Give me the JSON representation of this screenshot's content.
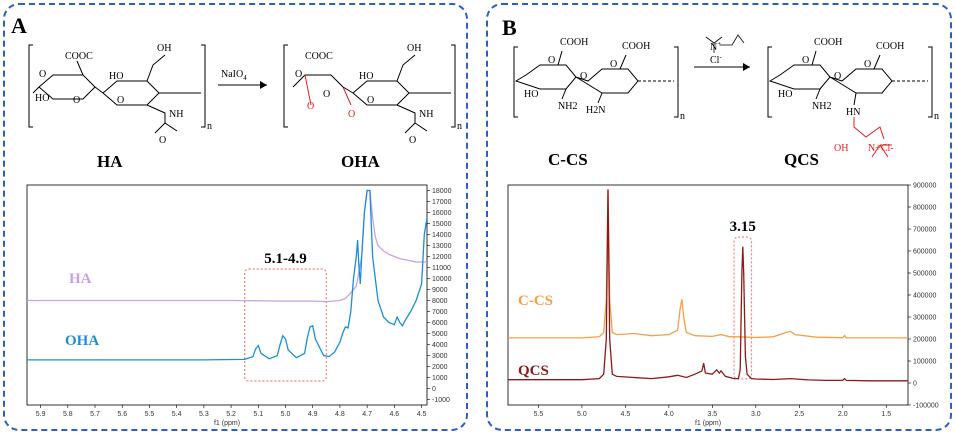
{
  "panelA": {
    "label": "A",
    "reagent": "NaIO",
    "reagent_sub": "4",
    "mol1": {
      "name": "HA",
      "groups": [
        "HO",
        "COOC",
        "OH",
        "O",
        "HO",
        "O",
        "O",
        "NH",
        "O",
        "n"
      ]
    },
    "mol2": {
      "name": "OHA",
      "groups": [
        "O",
        "COOC",
        "O",
        "O",
        "OH",
        "HO",
        "O",
        "O",
        "NH",
        "O",
        "n"
      ]
    }
  },
  "panelB": {
    "label": "B",
    "reagent": "N",
    "reagent_charge": "+",
    "reagent_counterion": "Cl",
    "reagent_counter_charge": "-",
    "mol1": {
      "name": "C-CS",
      "groups": [
        "COOH",
        "O",
        "COOH",
        "O",
        "O",
        "HO",
        "NH2",
        "H2N",
        "n"
      ]
    },
    "mol2": {
      "name": "QCS",
      "groups": [
        "COOH",
        "O",
        "COOH",
        "O",
        "O",
        "HO",
        "NH2",
        "HN",
        "OH",
        "N+Cl-",
        "n"
      ]
    }
  },
  "colors": {
    "border": "#2b5fc4",
    "ha": "#c9a0e6",
    "oha": "#1a8fd9",
    "ccs": "#f4a044",
    "qcs": "#8b1a1a",
    "highlight": "#f08080",
    "red_atoms": "#e02020"
  },
  "chart_data": [
    {
      "type": "line",
      "id": "nmr-A",
      "xlabel": "f1 (ppm)",
      "xlim": [
        5.95,
        4.48
      ],
      "ylim": [
        -1500,
        18500
      ],
      "x_ticks": [
        "5.9",
        "5.8",
        "5.7",
        "5.6",
        "5.5",
        "5.4",
        "5.3",
        "5.2",
        "5.1",
        "5.0",
        "4.9",
        "4.8",
        "4.7",
        "4.6",
        "4.5"
      ],
      "y_ticks": [
        "-1000",
        "0",
        "1000",
        "2000",
        "3000",
        "4000",
        "5000",
        "6000",
        "7000",
        "8000",
        "9000",
        "10000",
        "11000",
        "12000",
        "13000",
        "14000",
        "15000",
        "16000",
        "17000",
        "18000"
      ],
      "highlight": {
        "label": "5.1-4.9",
        "x_range": [
          5.15,
          4.85
        ]
      },
      "series": [
        {
          "name": "HA",
          "x": [
            5.95,
            5.2,
            5.0,
            4.9,
            4.85,
            4.8,
            4.78,
            4.76,
            4.74,
            4.72,
            4.71,
            4.7,
            4.69,
            4.68,
            4.67,
            4.66,
            4.64,
            4.62,
            4.6,
            4.58,
            4.56,
            4.54,
            4.52,
            4.5,
            4.48
          ],
          "y": [
            8000,
            8000,
            7950,
            7950,
            7900,
            8000,
            8200,
            8700,
            9300,
            12000,
            16000,
            18000,
            18000,
            15500,
            13800,
            13000,
            12500,
            12200,
            12000,
            11800,
            11700,
            11600,
            11500,
            11500,
            11500
          ]
        },
        {
          "name": "OHA",
          "x": [
            5.95,
            5.3,
            5.15,
            5.12,
            5.11,
            5.1,
            5.09,
            5.06,
            5.03,
            5.02,
            5.01,
            5.0,
            4.99,
            4.96,
            4.93,
            4.92,
            4.91,
            4.9,
            4.89,
            4.86,
            4.84,
            4.82,
            4.8,
            4.79,
            4.78,
            4.77,
            4.76,
            4.75,
            4.74,
            4.735,
            4.73,
            4.725,
            4.72,
            4.71,
            4.7,
            4.69,
            4.68,
            4.66,
            4.64,
            4.62,
            4.6,
            4.59,
            4.58,
            4.57,
            4.56,
            4.54,
            4.52,
            4.5,
            4.49,
            4.48
          ],
          "y": [
            2600,
            2600,
            2650,
            2900,
            3600,
            3900,
            3200,
            2700,
            3000,
            4000,
            4800,
            4500,
            3500,
            2800,
            3200,
            4600,
            5600,
            5700,
            4500,
            3000,
            2900,
            3300,
            4200,
            5000,
            5600,
            5500,
            7000,
            10000,
            12000,
            13500,
            11000,
            9500,
            12000,
            16000,
            18000,
            18000,
            12000,
            8000,
            6500,
            6000,
            5800,
            6500,
            6000,
            5700,
            6200,
            7000,
            8000,
            9500,
            14000,
            15500
          ]
        }
      ]
    },
    {
      "type": "line",
      "id": "nmr-B",
      "xlabel": "f1 (ppm)",
      "xlim": [
        5.85,
        1.25
      ],
      "ylim": [
        -100000,
        900000
      ],
      "x_ticks": [
        "5.5",
        "5.0",
        "4.5",
        "4.0",
        "3.5",
        "3.0",
        "2.5",
        "2.0",
        "1.5"
      ],
      "y_ticks": [
        "-100000",
        "0",
        "100000",
        "200000",
        "300000",
        "400000",
        "500000",
        "600000",
        "700000",
        "800000",
        "900000"
      ],
      "highlight": {
        "label": "3.15",
        "x_range": [
          3.25,
          3.05
        ]
      },
      "series": [
        {
          "name": "C-CS",
          "x": [
            5.85,
            5.0,
            4.8,
            4.75,
            4.72,
            4.7,
            4.68,
            4.65,
            4.6,
            4.4,
            4.2,
            4.0,
            3.9,
            3.87,
            3.85,
            3.83,
            3.8,
            3.7,
            3.5,
            3.4,
            3.3,
            3.2,
            3.1,
            3.0,
            2.8,
            2.65,
            2.6,
            2.55,
            2.3,
            2.0,
            1.98,
            1.96,
            1.7,
            1.25
          ],
          "y": [
            205000,
            205000,
            210000,
            230000,
            380000,
            880000,
            380000,
            230000,
            220000,
            225000,
            215000,
            220000,
            240000,
            340000,
            380000,
            300000,
            230000,
            215000,
            212000,
            220000,
            210000,
            210000,
            208000,
            207000,
            210000,
            230000,
            235000,
            220000,
            208000,
            206000,
            215000,
            205000,
            205000,
            205000
          ]
        },
        {
          "name": "QCS",
          "x": [
            5.85,
            5.0,
            4.8,
            4.75,
            4.72,
            4.7,
            4.68,
            4.65,
            4.6,
            4.4,
            4.2,
            4.0,
            3.9,
            3.8,
            3.7,
            3.62,
            3.6,
            3.58,
            3.5,
            3.45,
            3.42,
            3.4,
            3.35,
            3.3,
            3.25,
            3.2,
            3.18,
            3.16,
            3.15,
            3.14,
            3.12,
            3.1,
            3.05,
            3.0,
            2.8,
            2.6,
            2.4,
            2.2,
            2.0,
            1.98,
            1.96,
            1.7,
            1.25
          ],
          "y": [
            15000,
            15000,
            20000,
            40000,
            200000,
            880000,
            200000,
            40000,
            30000,
            25000,
            20000,
            28000,
            35000,
            25000,
            40000,
            55000,
            90000,
            45000,
            40000,
            60000,
            45000,
            55000,
            30000,
            25000,
            20000,
            20000,
            60000,
            500000,
            620000,
            500000,
            120000,
            40000,
            20000,
            18000,
            16000,
            20000,
            14000,
            12000,
            12000,
            20000,
            12000,
            10000,
            10000
          ]
        }
      ]
    }
  ]
}
